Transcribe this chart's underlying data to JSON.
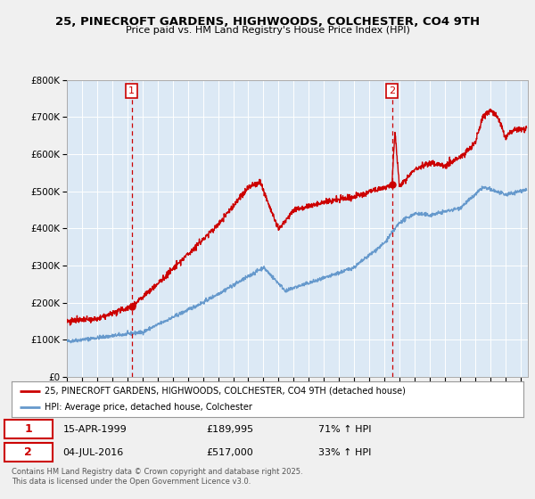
{
  "title1": "25, PINECROFT GARDENS, HIGHWOODS, COLCHESTER, CO4 9TH",
  "title2": "Price paid vs. HM Land Registry's House Price Index (HPI)",
  "legend_red": "25, PINECROFT GARDENS, HIGHWOODS, COLCHESTER, CO4 9TH (detached house)",
  "legend_blue": "HPI: Average price, detached house, Colchester",
  "sale1_date": "15-APR-1999",
  "sale1_price": 189995,
  "sale1_label": "£189,995",
  "sale1_hpi": "71% ↑ HPI",
  "sale1_year": 1999.29,
  "sale2_date": "04-JUL-2016",
  "sale2_price": 517000,
  "sale2_label": "£517,000",
  "sale2_hpi": "33% ↑ HPI",
  "sale2_year": 2016.5,
  "footer": "Contains HM Land Registry data © Crown copyright and database right 2025.\nThis data is licensed under the Open Government Licence v3.0.",
  "red_color": "#cc0000",
  "blue_color": "#6699cc",
  "background_color": "#f0f0f0",
  "plot_bg_color": "#dce9f5",
  "ylim": [
    0,
    800000
  ],
  "xlim_start": 1995.0,
  "xlim_end": 2025.5
}
